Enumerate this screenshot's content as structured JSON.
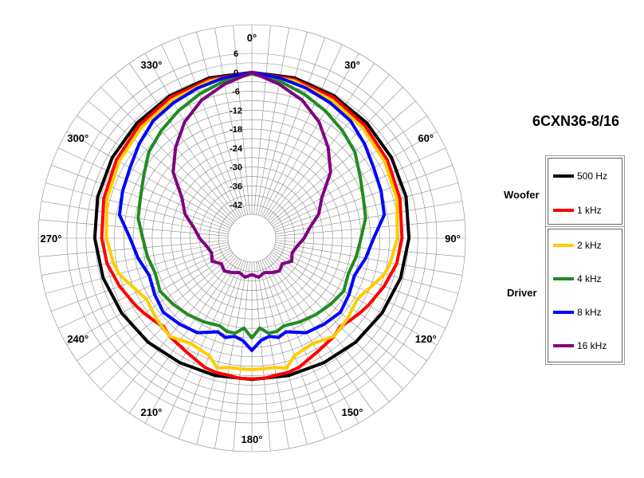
{
  "chart_data": {
    "type": "polar-line",
    "title": "6CXN36-8/16",
    "radial_axis": {
      "min": -45,
      "max": 6,
      "step": 6,
      "unit": "dB",
      "tick_labels": [
        "6",
        "0",
        "-6",
        "-12",
        "-18",
        "-24",
        "-30",
        "-36",
        "-42"
      ]
    },
    "angle_axis": {
      "step_grid": 5,
      "direction": "clockwise",
      "zero": "top",
      "tick_labels": [
        "0°",
        "30°",
        "60°",
        "90°",
        "120°",
        "150°",
        "180°",
        "210°",
        "240°",
        "270°",
        "300°",
        "330°"
      ]
    },
    "grid": true,
    "legend_position": "right",
    "legend_groups": [
      {
        "label": "Woofer",
        "series": [
          "500 Hz",
          "1 kHz"
        ]
      },
      {
        "label": "Driver",
        "series": [
          "2 kHz",
          "4 kHz",
          "8 kHz",
          "16 kHz"
        ]
      }
    ],
    "series": [
      {
        "name": "500 Hz",
        "color": "#000000",
        "angles": [
          0,
          15,
          30,
          45,
          60,
          75,
          90,
          105,
          120,
          135,
          150,
          165,
          180
        ],
        "values": [
          0,
          0,
          -0.5,
          -1,
          -1.5,
          -2,
          -2.8,
          -3.8,
          -5,
          -6,
          -7,
          -7.5,
          -7.8
        ]
      },
      {
        "name": "1 kHz",
        "color": "#ff0000",
        "angles": [
          0,
          15,
          30,
          45,
          60,
          75,
          90,
          100,
          110,
          120,
          125,
          130,
          135,
          140,
          150,
          160,
          165,
          170,
          175,
          180
        ],
        "values": [
          0,
          -0.5,
          -1,
          -2,
          -3,
          -4,
          -5,
          -6,
          -8,
          -10,
          -11,
          -12,
          -13,
          -12,
          -11,
          -9,
          -8.5,
          -8.5,
          -8,
          -8
        ]
      },
      {
        "name": "2 kHz",
        "color": "#ffcc00",
        "angles": [
          0,
          15,
          30,
          45,
          60,
          75,
          90,
          100,
          105,
          110,
          120,
          130,
          140,
          150,
          160,
          165,
          170,
          175,
          180
        ],
        "values": [
          0,
          -1,
          -2,
          -3,
          -4,
          -5,
          -6.5,
          -8,
          -9,
          -11,
          -14,
          -13,
          -12,
          -14,
          -13,
          -10,
          -11,
          -11,
          -11
        ]
      },
      {
        "name": "4 kHz",
        "color": "#228b22",
        "angles": [
          0,
          10,
          20,
          30,
          40,
          50,
          60,
          70,
          80,
          90,
          100,
          110,
          120,
          130,
          140,
          150,
          160,
          165,
          170,
          175,
          180
        ],
        "values": [
          -0.5,
          -2,
          -4,
          -6,
          -8,
          -10,
          -13,
          -15,
          -16,
          -18,
          -19,
          -20,
          -19,
          -20,
          -21,
          -22,
          -23,
          -22,
          -22,
          -24,
          -21
        ]
      },
      {
        "name": "8 kHz",
        "color": "#0000ff",
        "angles": [
          0,
          10,
          20,
          30,
          40,
          50,
          60,
          70,
          80,
          90,
          100,
          110,
          120,
          130,
          140,
          150,
          160,
          165,
          170,
          175,
          180
        ],
        "values": [
          0,
          -1,
          -2,
          -3,
          -4,
          -6,
          -8,
          -9,
          -10,
          -14,
          -16,
          -18,
          -17,
          -16,
          -17,
          -18,
          -21,
          -20,
          -21,
          -20,
          -17
        ]
      },
      {
        "name": "16 kHz",
        "color": "#800080",
        "angles": [
          0,
          10,
          20,
          30,
          40,
          50,
          60,
          70,
          80,
          90,
          100,
          110,
          120,
          130,
          140,
          150,
          160,
          170,
          180
        ],
        "values": [
          0,
          -3,
          -6,
          -10,
          -15,
          -20,
          -27,
          -30,
          -34,
          -36,
          -38,
          -39,
          -38,
          -40,
          -39,
          -40,
          -41,
          -40,
          -41
        ]
      }
    ]
  }
}
